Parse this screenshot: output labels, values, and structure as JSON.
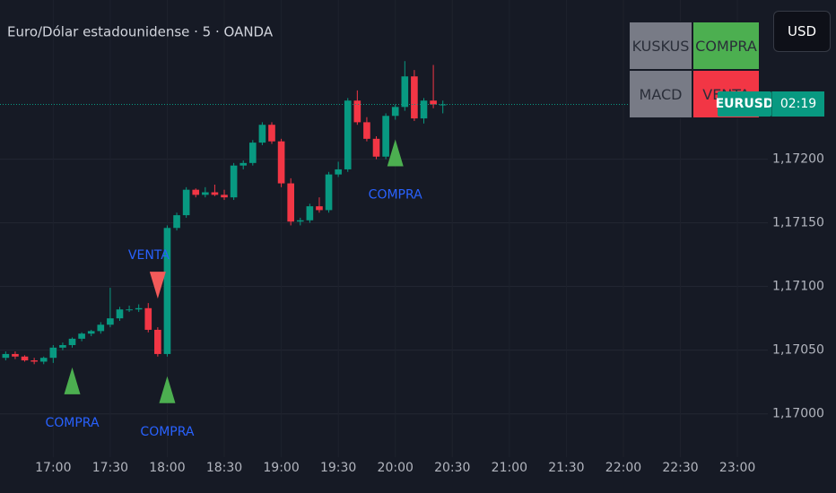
{
  "chart_data": {
    "type": "candlestick",
    "title": "Euro/Dólar estadounidense · 5 · OANDA",
    "symbol": "EURUSD",
    "countdown": "02:19",
    "currency": "USD",
    "last_price": 1.17243,
    "up_color": "#089981",
    "down_color": "#f23645",
    "grid": true,
    "x": [
      995,
      1000,
      1005,
      1010,
      1015,
      1020,
      1025,
      1030,
      1035,
      1040,
      1045,
      1050,
      1055,
      1060,
      1065,
      1070,
      1075,
      1080,
      1085,
      1090,
      1095,
      1100,
      1105,
      1110,
      1115,
      1120,
      1125,
      1130,
      1135,
      1140,
      1145,
      1150,
      1155,
      1160,
      1165,
      1170,
      1175,
      1180,
      1185,
      1190,
      1195,
      1200,
      1205,
      1210,
      1215,
      1220,
      1225
    ],
    "open": [
      1.17044,
      1.17047,
      1.17045,
      1.17042,
      1.17041,
      1.17044,
      1.17052,
      1.17054,
      1.17059,
      1.17063,
      1.17065,
      1.1707,
      1.17075,
      1.17082,
      1.17082,
      1.17083,
      1.17066,
      1.17047,
      1.17146,
      1.17156,
      1.17176,
      1.17172,
      1.17174,
      1.17172,
      1.1717,
      1.17195,
      1.17197,
      1.17213,
      1.17227,
      1.17214,
      1.17181,
      1.17151,
      1.17152,
      1.17163,
      1.1716,
      1.17188,
      1.17192,
      1.17246,
      1.17229,
      1.17216,
      1.17202,
      1.17234,
      1.17241,
      1.17265,
      1.17232,
      1.17246,
      1.17243
    ],
    "high": [
      1.17049,
      1.17049,
      1.17046,
      1.17044,
      1.17045,
      1.17054,
      1.17056,
      1.1706,
      1.17064,
      1.17066,
      1.17072,
      1.17099,
      1.17084,
      1.17085,
      1.17086,
      1.17087,
      1.17068,
      1.17148,
      1.17158,
      1.17178,
      1.17177,
      1.17178,
      1.1718,
      1.17176,
      1.17197,
      1.17199,
      1.17215,
      1.17229,
      1.17229,
      1.17216,
      1.17185,
      1.17154,
      1.17165,
      1.1717,
      1.1719,
      1.17198,
      1.17248,
      1.17254,
      1.17233,
      1.17218,
      1.17236,
      1.17243,
      1.17277,
      1.1727,
      1.17248,
      1.17274,
      1.17246
    ],
    "low": [
      1.17042,
      1.17043,
      1.17041,
      1.17039,
      1.17039,
      1.1704,
      1.1705,
      1.17052,
      1.17057,
      1.17061,
      1.17063,
      1.17068,
      1.17073,
      1.1708,
      1.1708,
      1.17064,
      1.17045,
      1.17045,
      1.17144,
      1.17154,
      1.1717,
      1.1717,
      1.17171,
      1.17168,
      1.17168,
      1.17192,
      1.17195,
      1.17211,
      1.17212,
      1.17178,
      1.17148,
      1.17148,
      1.1715,
      1.17158,
      1.17158,
      1.17186,
      1.1719,
      1.17227,
      1.17214,
      1.172,
      1.172,
      1.17231,
      1.17238,
      1.1723,
      1.17228,
      1.1724,
      1.17236
    ],
    "close": [
      1.17047,
      1.17045,
      1.17042,
      1.17041,
      1.17044,
      1.17052,
      1.17054,
      1.17059,
      1.17063,
      1.17065,
      1.1707,
      1.17075,
      1.17082,
      1.17082,
      1.17083,
      1.17066,
      1.17047,
      1.17146,
      1.17156,
      1.17176,
      1.17172,
      1.17174,
      1.17172,
      1.1717,
      1.17195,
      1.17197,
      1.17213,
      1.17227,
      1.17214,
      1.17181,
      1.17151,
      1.17152,
      1.17163,
      1.1716,
      1.17188,
      1.17192,
      1.17246,
      1.17229,
      1.17216,
      1.17202,
      1.17234,
      1.17241,
      1.17265,
      1.17232,
      1.17246,
      1.17243,
      1.17243
    ],
    "xlim": [
      992,
      1396
    ],
    "ylim": [
      1.16966,
      1.17325
    ],
    "xticks": [
      {
        "value": 1020,
        "label": "17:00"
      },
      {
        "value": 1050,
        "label": "17:30"
      },
      {
        "value": 1080,
        "label": "18:00"
      },
      {
        "value": 1110,
        "label": "18:30"
      },
      {
        "value": 1140,
        "label": "19:00"
      },
      {
        "value": 1170,
        "label": "19:30"
      },
      {
        "value": 1200,
        "label": "20:00"
      },
      {
        "value": 1230,
        "label": "20:30"
      },
      {
        "value": 1260,
        "label": "21:00"
      },
      {
        "value": 1290,
        "label": "21:30"
      },
      {
        "value": 1320,
        "label": "22:00"
      },
      {
        "value": 1350,
        "label": "22:30"
      },
      {
        "value": 1380,
        "label": "23:00"
      }
    ],
    "yticks": [
      {
        "value": 1.17,
        "label": "1,17000"
      },
      {
        "value": 1.1705,
        "label": "1,17050"
      },
      {
        "value": 1.171,
        "label": "1,17100"
      },
      {
        "value": 1.1715,
        "label": "1,17150"
      },
      {
        "value": 1.172,
        "label": "1,17200"
      }
    ],
    "signals": [
      {
        "side": "buy",
        "x": 1030,
        "label": "COMPRA"
      },
      {
        "side": "sell",
        "x": 1075,
        "label": "VENTA"
      },
      {
        "side": "buy",
        "x": 1080,
        "label": "COMPRA"
      },
      {
        "side": "buy",
        "x": 1200,
        "label": "COMPRA"
      }
    ],
    "indicator_table": [
      [
        "KUSKUS",
        "COMPRA"
      ],
      [
        "MACD",
        "VENTA"
      ]
    ]
  }
}
